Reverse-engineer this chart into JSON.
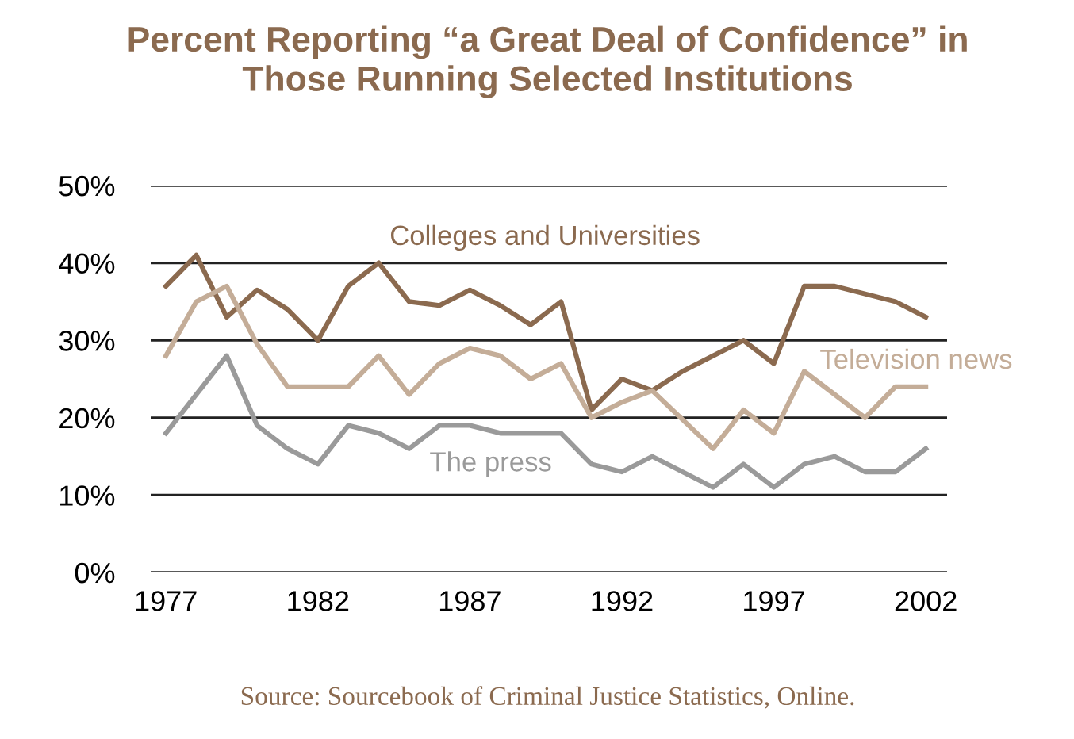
{
  "chart_data": {
    "type": "line",
    "title": "Percent Reporting “a Great Deal of Confidence” in\nThose Running Selected Institutions",
    "series": [
      {
        "name": "Colleges and Universities",
        "color": "#8b6a4f",
        "x": [
          1977,
          1978,
          1979,
          1980,
          1981,
          1982,
          1983,
          1984,
          1985,
          1986,
          1987,
          1988,
          1989,
          1990,
          1991,
          1992,
          1993,
          1994,
          1996,
          1997,
          1998,
          1999,
          2000,
          2001,
          2002
        ],
        "values": [
          37,
          41,
          33,
          36.5,
          34,
          30,
          37,
          40,
          35,
          34.5,
          36.5,
          34.5,
          32,
          35,
          21,
          25,
          23.5,
          26,
          30,
          27,
          37,
          37,
          36,
          35,
          33
        ]
      },
      {
        "name": "Television news",
        "color": "#c4ad98",
        "x": [
          1977,
          1978,
          1979,
          1980,
          1981,
          1982,
          1983,
          1984,
          1985,
          1986,
          1987,
          1988,
          1989,
          1990,
          1991,
          1992,
          1993,
          1995,
          1996,
          1997,
          1998,
          1999,
          2000,
          2001,
          2002
        ],
        "values": [
          28,
          35,
          37,
          29.5,
          24,
          24,
          24,
          28,
          23,
          27,
          29,
          28,
          25,
          27,
          20,
          22,
          23.5,
          16,
          21,
          18,
          26,
          23,
          20,
          24,
          24
        ]
      },
      {
        "name": "The press",
        "color": "#9a9a9a",
        "x": [
          1977,
          1979,
          1980,
          1981,
          1982,
          1983,
          1984,
          1985,
          1986,
          1987,
          1988,
          1989,
          1990,
          1991,
          1992,
          1993,
          1995,
          1996,
          1997,
          1998,
          1999,
          2000,
          2001,
          2002
        ],
        "values": [
          18,
          28,
          19,
          16,
          14,
          19,
          18,
          16,
          19,
          19,
          18,
          18,
          18,
          14,
          13,
          15,
          11,
          14,
          11,
          14,
          15,
          13,
          13,
          16
        ]
      }
    ],
    "xlim": [
      1976.5,
      2002.7
    ],
    "xticks": [
      1977,
      1982,
      1987,
      1992,
      1997,
      2002
    ],
    "ylim": [
      0,
      50
    ],
    "yticks": [
      {
        "value": 0,
        "label": "0%"
      },
      {
        "value": 10,
        "label": "10%"
      },
      {
        "value": 20,
        "label": "20%"
      },
      {
        "value": 30,
        "label": "30%"
      },
      {
        "value": 40,
        "label": "40%"
      },
      {
        "value": 50,
        "label": "50%"
      }
    ],
    "grid": "y",
    "legend": false,
    "marker": "none",
    "line_style": "solid",
    "annotations": [
      "Source: Sourcebook of Criminal Justice Statistics, Online."
    ]
  }
}
